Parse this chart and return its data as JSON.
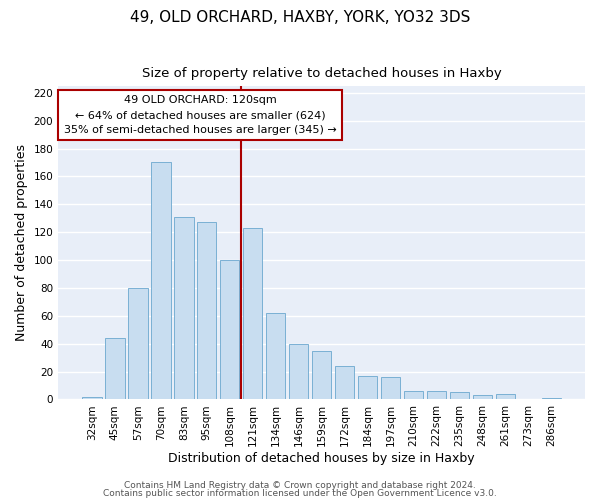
{
  "title": "49, OLD ORCHARD, HAXBY, YORK, YO32 3DS",
  "subtitle": "Size of property relative to detached houses in Haxby",
  "xlabel": "Distribution of detached houses by size in Haxby",
  "ylabel": "Number of detached properties",
  "bar_labels": [
    "32sqm",
    "45sqm",
    "57sqm",
    "70sqm",
    "83sqm",
    "95sqm",
    "108sqm",
    "121sqm",
    "134sqm",
    "146sqm",
    "159sqm",
    "172sqm",
    "184sqm",
    "197sqm",
    "210sqm",
    "222sqm",
    "235sqm",
    "248sqm",
    "261sqm",
    "273sqm",
    "286sqm"
  ],
  "bar_values": [
    2,
    44,
    80,
    170,
    131,
    127,
    100,
    123,
    62,
    40,
    35,
    24,
    17,
    16,
    6,
    6,
    5,
    3,
    4,
    0,
    1
  ],
  "bar_color": "#c8ddf0",
  "bar_edge_color": "#7ab0d4",
  "vline_color": "#aa0000",
  "vline_index": 7,
  "ylim": [
    0,
    225
  ],
  "yticks": [
    0,
    20,
    40,
    60,
    80,
    100,
    120,
    140,
    160,
    180,
    200,
    220
  ],
  "annotation_title": "49 OLD ORCHARD: 120sqm",
  "annotation_line1": "← 64% of detached houses are smaller (624)",
  "annotation_line2": "35% of semi-detached houses are larger (345) →",
  "footer1": "Contains HM Land Registry data © Crown copyright and database right 2024.",
  "footer2": "Contains public sector information licensed under the Open Government Licence v3.0.",
  "background_color": "#ffffff",
  "plot_bg_color": "#e8eef8",
  "grid_color": "#ffffff",
  "title_fontsize": 11,
  "subtitle_fontsize": 9.5,
  "axis_label_fontsize": 9,
  "tick_fontsize": 7.5,
  "annotation_fontsize": 8,
  "footer_fontsize": 6.5
}
